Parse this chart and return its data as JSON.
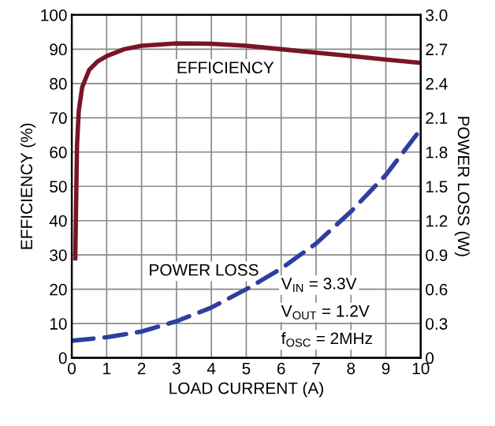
{
  "chart_data": {
    "type": "line",
    "xlabel": "LOAD CURRENT (A)",
    "ylabel": "EFFICIENCY (%)",
    "y2label": "POWER LOSS (W)",
    "xlim": [
      0,
      10
    ],
    "xticks": [
      0,
      1,
      2,
      3,
      4,
      5,
      6,
      7,
      8,
      9,
      10
    ],
    "ylim": [
      0,
      100
    ],
    "yticks": [
      0,
      10,
      20,
      30,
      40,
      50,
      60,
      70,
      80,
      90,
      100
    ],
    "y2lim": [
      0,
      3
    ],
    "y2ticks": [
      0,
      0.3,
      0.6,
      0.9,
      1.2,
      1.5,
      1.8,
      2.1,
      2.4,
      2.7,
      {
        "value": 3,
        "label": "3.0"
      }
    ],
    "grid": true,
    "legend": false,
    "series": [
      {
        "color": "#7a1528",
        "line_style": "solid",
        "x": [
          0.1,
          0.15,
          0.2,
          0.3,
          0.5,
          0.75,
          1,
          1.5,
          2,
          3,
          4,
          5,
          6,
          7,
          8,
          9,
          10
        ],
        "values": [
          29,
          62,
          72,
          79,
          84,
          86.5,
          88,
          90,
          91,
          91.7,
          91.6,
          91,
          90,
          89,
          88,
          87,
          86
        ]
      },
      {
        "color": "#2e3f9e",
        "line_style": "dashed",
        "axis": "y2",
        "x": [
          0,
          1,
          2,
          3,
          4,
          5,
          6,
          7,
          8,
          9,
          10
        ],
        "values": [
          0.15,
          0.18,
          0.23,
          0.32,
          0.44,
          0.6,
          0.78,
          1.0,
          1.28,
          1.6,
          2.0
        ]
      }
    ],
    "annotations": [
      "EFFICIENCY",
      "POWER LOSS",
      "V$_{IN}$ = 3.3V",
      "V$_{OUT}$ = 1.2V",
      "f$_{OSC}$ = 2MHz"
    ]
  }
}
